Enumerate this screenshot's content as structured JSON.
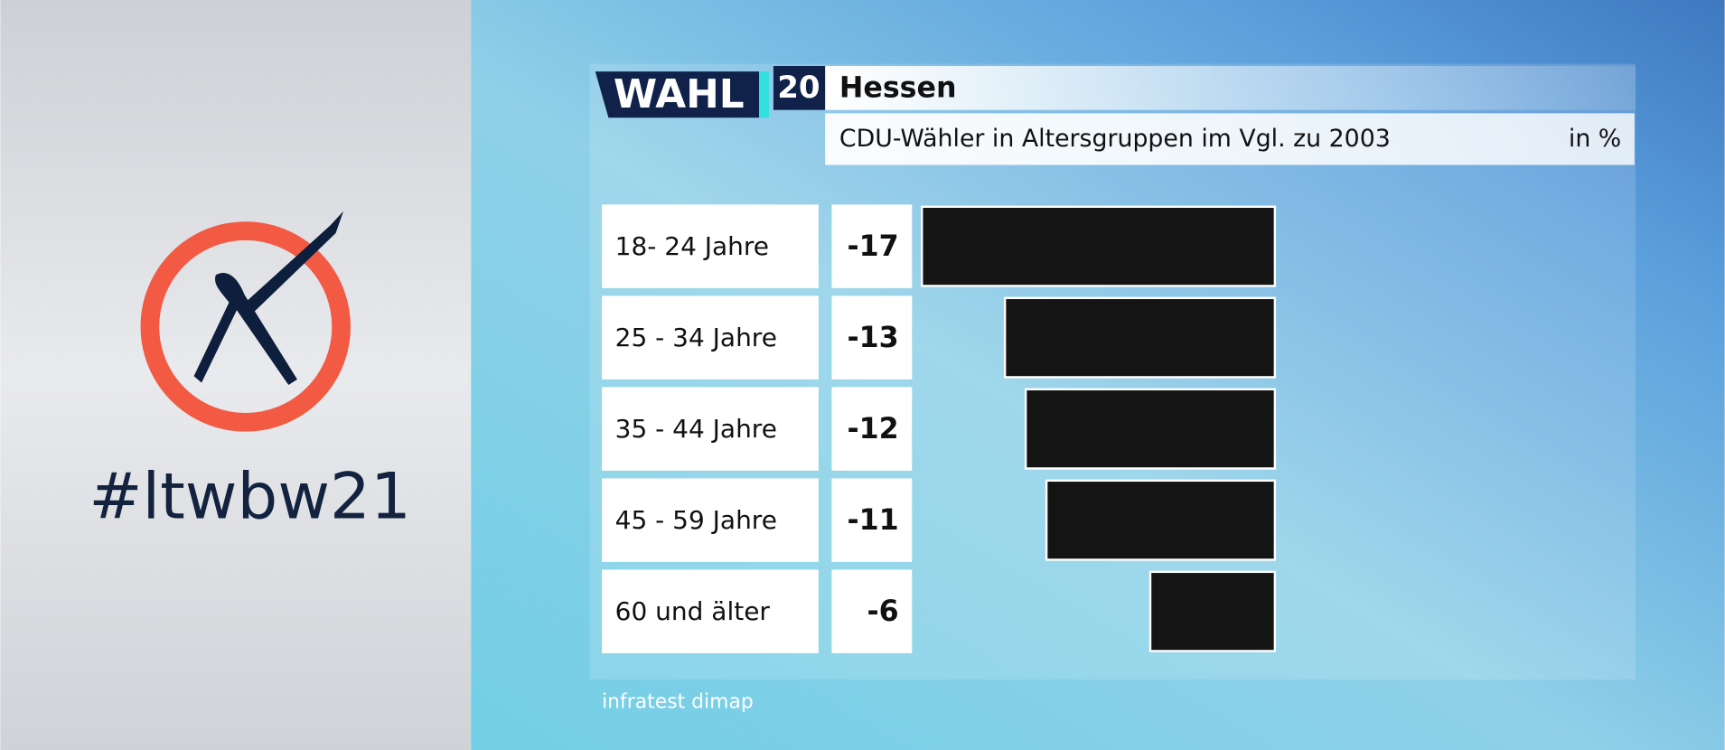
{
  "hashtag": "#ltwbw21",
  "logo": {
    "word": "WAHL",
    "number": "20"
  },
  "chart_data": {
    "type": "bar",
    "orientation": "horizontal",
    "title": "Hessen",
    "subtitle": "CDU-Wähler in Altersgruppen im Vgl. zu 2003",
    "unit": "in %",
    "source": "infratest dimap",
    "categories": [
      "18- 24 Jahre",
      "25 - 34 Jahre",
      "35 - 44 Jahre",
      "45 - 59 Jahre",
      "60 und älter"
    ],
    "values": [
      -17,
      -13,
      -12,
      -11,
      -6
    ],
    "color": "#141414"
  }
}
